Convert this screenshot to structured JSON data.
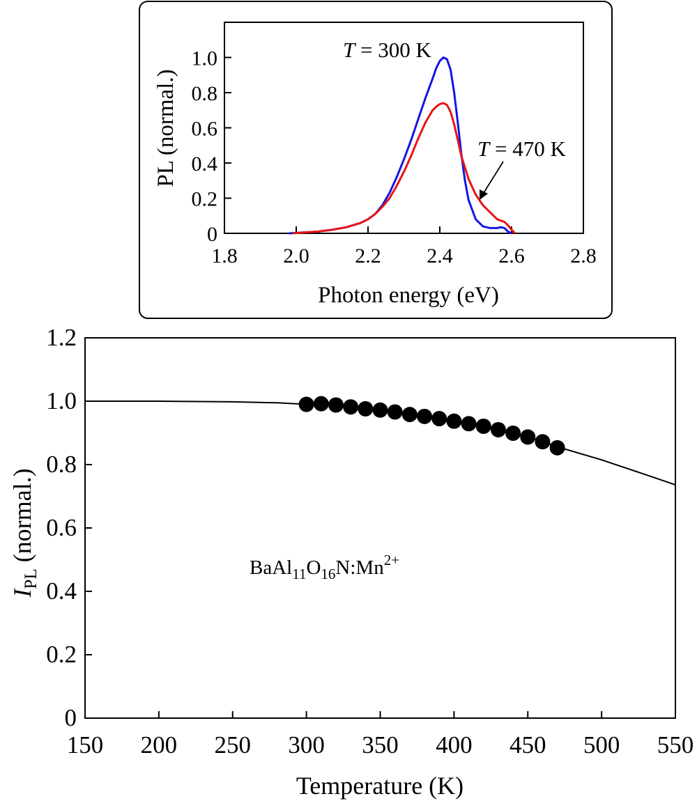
{
  "chart_data": [
    {
      "id": "inset",
      "type": "line",
      "xlabel": "Photon energy (eV)",
      "ylabel": "PL (normal.)",
      "xlim": [
        1.8,
        2.8
      ],
      "ylim": [
        0,
        1.2
      ],
      "xticks": [
        "1.8",
        "2.0",
        "2.2",
        "2.4",
        "2.6",
        "2.8"
      ],
      "yticks": [
        "0",
        "0.2",
        "0.4",
        "0.6",
        "0.8",
        "1.0"
      ],
      "annotations": [
        {
          "prefix": "T",
          "text": " = 300 K"
        },
        {
          "prefix": "T",
          "text": " = 470 K"
        }
      ],
      "series": [
        {
          "name": "T = 300 K",
          "color": "#1414e6",
          "x": [
            1.98,
            2.02,
            2.06,
            2.1,
            2.14,
            2.18,
            2.2,
            2.22,
            2.24,
            2.26,
            2.28,
            2.3,
            2.32,
            2.34,
            2.36,
            2.38,
            2.39,
            2.4,
            2.41,
            2.42,
            2.43,
            2.44,
            2.45,
            2.46,
            2.47,
            2.48,
            2.5,
            2.52,
            2.54,
            2.56,
            2.57,
            2.58,
            2.59,
            2.6
          ],
          "y": [
            0,
            0.005,
            0.01,
            0.02,
            0.035,
            0.06,
            0.08,
            0.11,
            0.16,
            0.23,
            0.32,
            0.42,
            0.53,
            0.65,
            0.77,
            0.88,
            0.94,
            0.98,
            1.0,
            0.99,
            0.93,
            0.8,
            0.63,
            0.45,
            0.3,
            0.19,
            0.08,
            0.04,
            0.03,
            0.03,
            0.035,
            0.03,
            0.01,
            0
          ]
        },
        {
          "name": "T = 470 K",
          "color": "#e61414",
          "x": [
            1.99,
            2.02,
            2.06,
            2.1,
            2.14,
            2.18,
            2.2,
            2.22,
            2.24,
            2.26,
            2.28,
            2.3,
            2.32,
            2.34,
            2.36,
            2.38,
            2.39,
            2.4,
            2.41,
            2.42,
            2.43,
            2.44,
            2.45,
            2.46,
            2.48,
            2.5,
            2.52,
            2.54,
            2.56,
            2.58,
            2.59,
            2.6,
            2.61
          ],
          "y": [
            0,
            0.005,
            0.01,
            0.02,
            0.035,
            0.06,
            0.08,
            0.11,
            0.15,
            0.2,
            0.27,
            0.35,
            0.44,
            0.54,
            0.63,
            0.7,
            0.72,
            0.735,
            0.74,
            0.73,
            0.69,
            0.62,
            0.53,
            0.44,
            0.31,
            0.22,
            0.16,
            0.12,
            0.08,
            0.065,
            0.045,
            0.02,
            0
          ]
        }
      ]
    },
    {
      "id": "main",
      "type": "scatter",
      "xlabel": "Temperature (K)",
      "ylabel": {
        "main": "I",
        "sub": "PL",
        "rest": " (normal.)"
      },
      "xlim": [
        150,
        550
      ],
      "ylim": [
        0,
        1.2
      ],
      "xticks": [
        "150",
        "200",
        "250",
        "300",
        "350",
        "400",
        "450",
        "500",
        "550"
      ],
      "yticks": [
        "0",
        "0.2",
        "0.4",
        "0.6",
        "0.8",
        "1.0",
        "1.2"
      ],
      "annotation": {
        "a": "BaAl",
        "b": "11",
        "c": "O",
        "d": "16",
        "e": "N:Mn",
        "f": "2+"
      },
      "points": {
        "x": [
          300,
          310,
          320,
          330,
          340,
          350,
          360,
          370,
          380,
          390,
          400,
          410,
          420,
          430,
          440,
          450,
          460,
          470
        ],
        "y": [
          0.99,
          0.992,
          0.988,
          0.982,
          0.976,
          0.972,
          0.966,
          0.958,
          0.952,
          0.945,
          0.937,
          0.929,
          0.921,
          0.91,
          0.899,
          0.887,
          0.872,
          0.853
        ]
      },
      "fit": {
        "x": [
          150,
          200,
          250,
          280,
          300,
          320,
          350,
          380,
          400,
          420,
          450,
          470,
          500,
          530,
          550
        ],
        "y": [
          1.0,
          1.0,
          0.998,
          0.995,
          0.99,
          0.986,
          0.972,
          0.952,
          0.937,
          0.92,
          0.889,
          0.856,
          0.815,
          0.768,
          0.736
        ]
      }
    }
  ]
}
